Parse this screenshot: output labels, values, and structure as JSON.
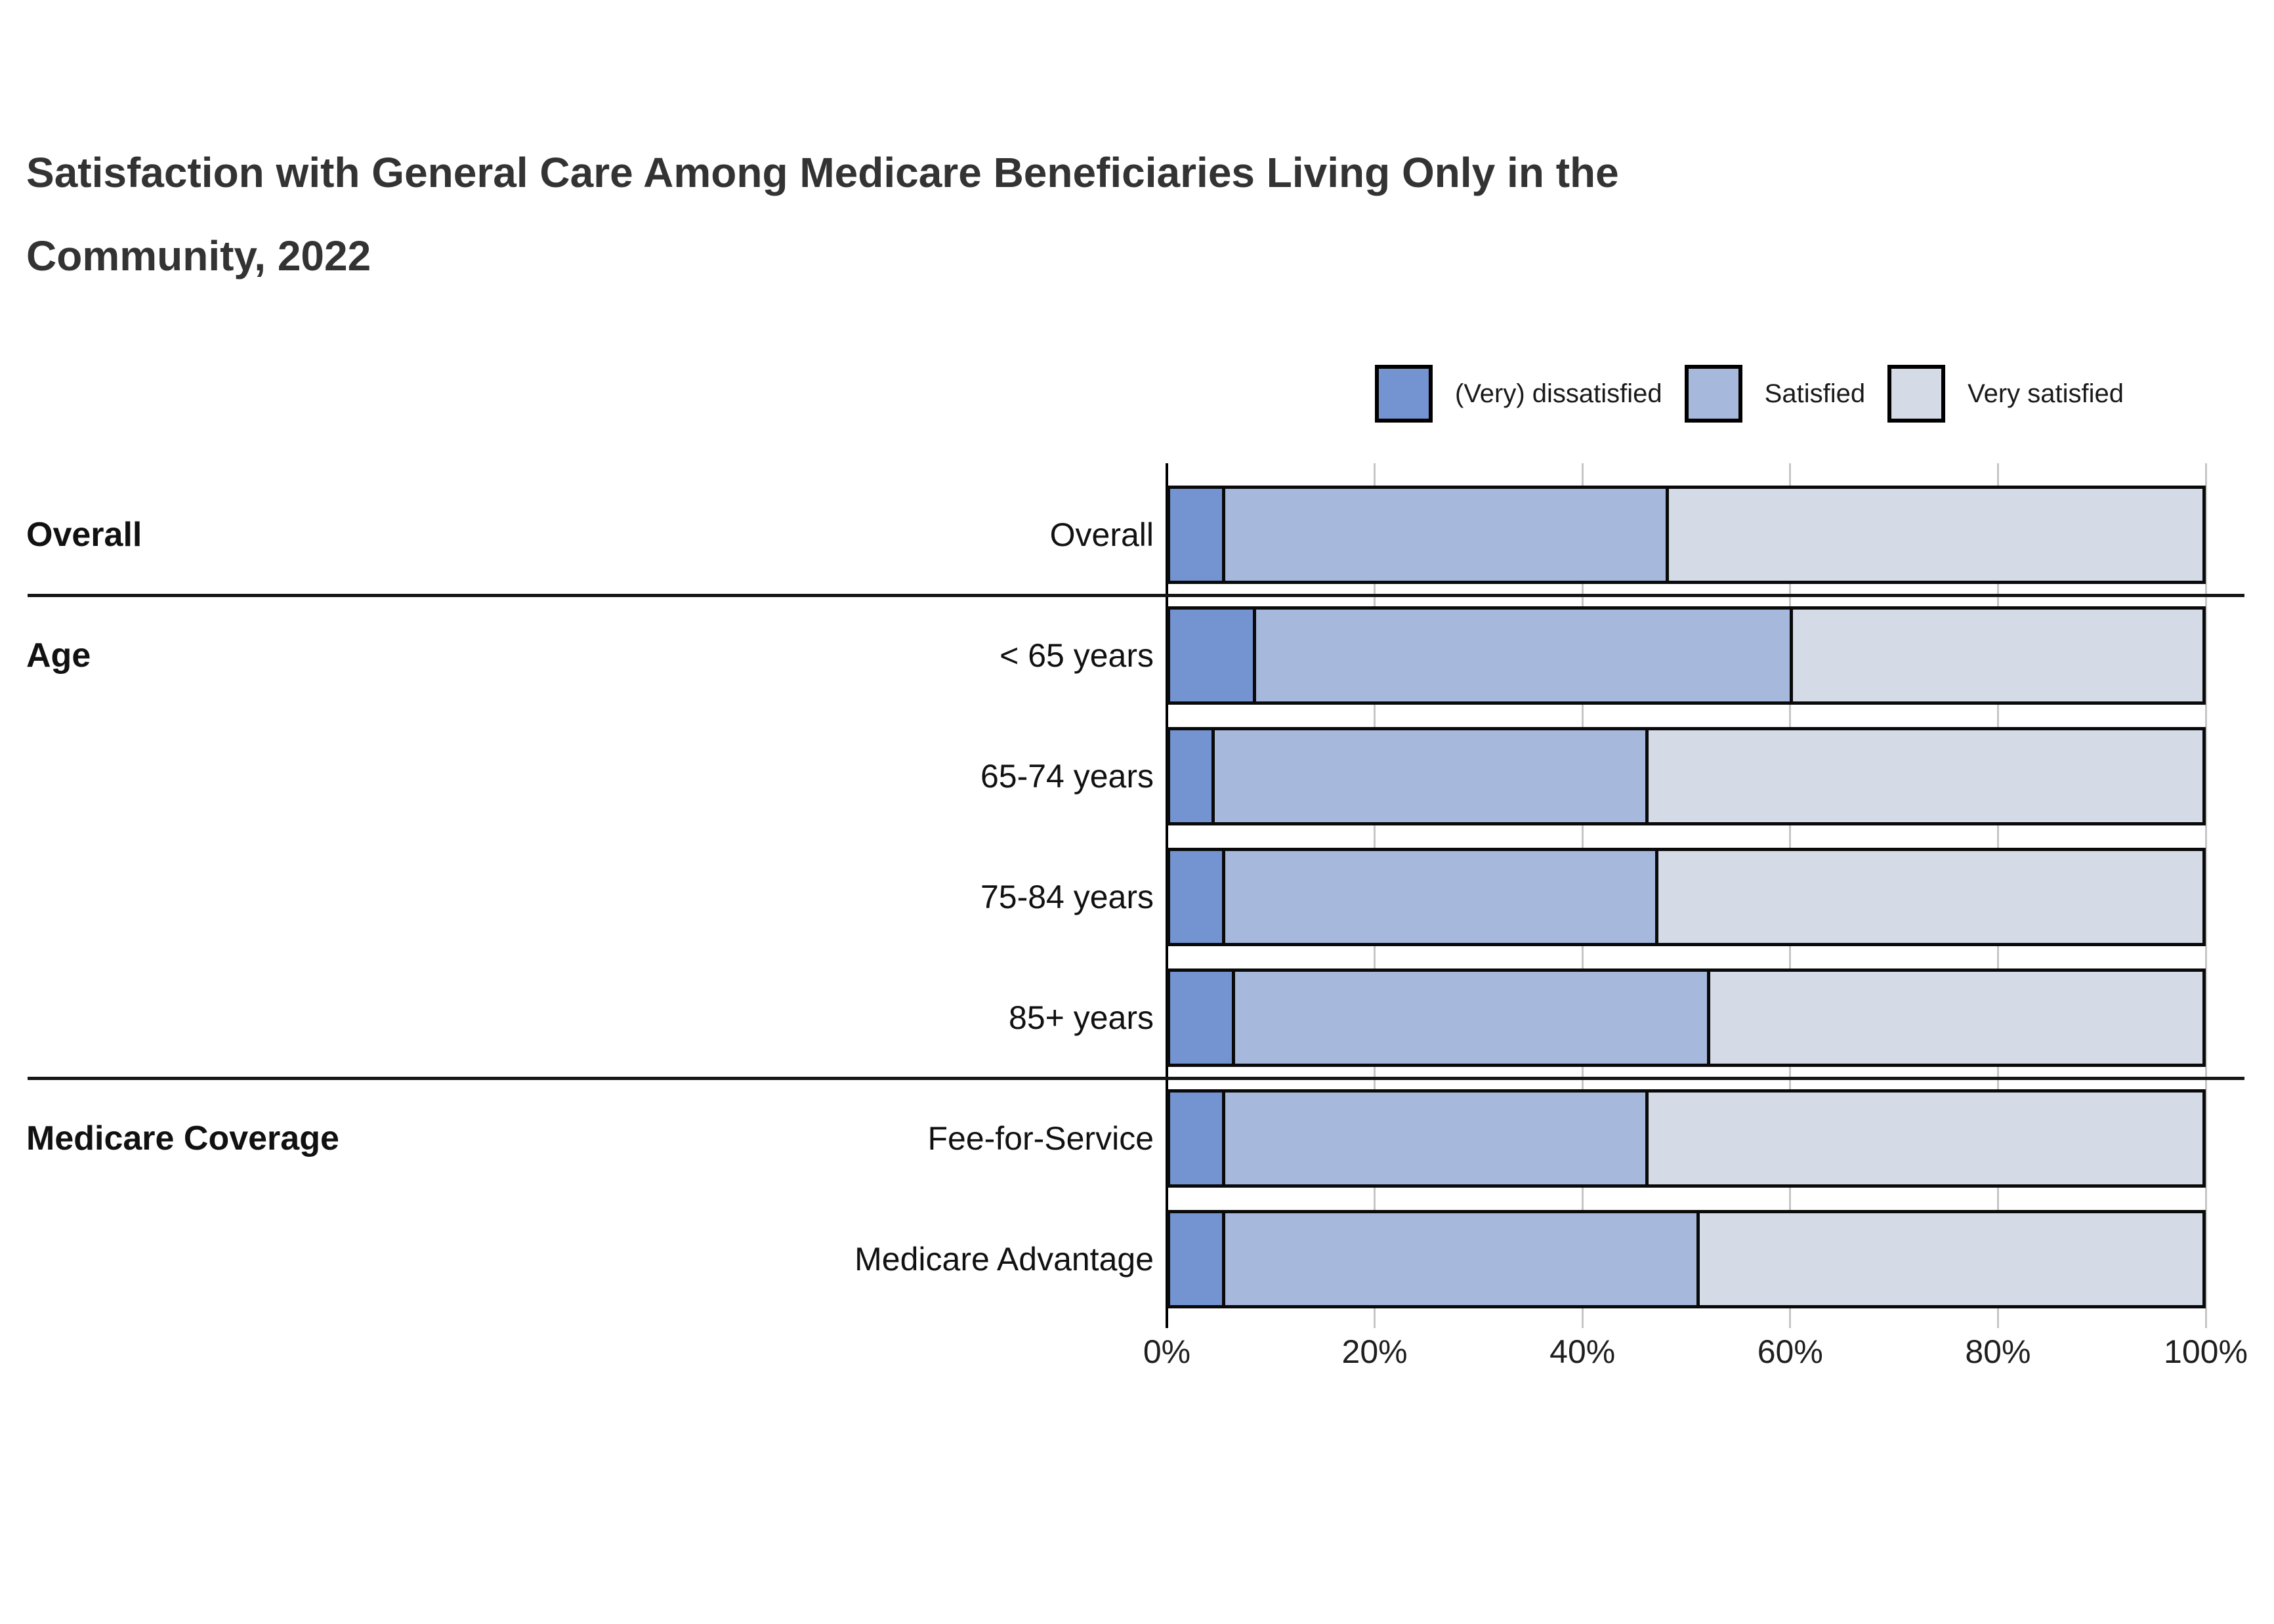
{
  "title": {
    "lines": [
      "Satisfaction with General Care Among Medicare Beneficiaries Living Only in the",
      "Community, 2022"
    ]
  },
  "legend": {
    "items": [
      {
        "label": "(Very) dissatisfied",
        "color": "#7493d1"
      },
      {
        "label": "Satisfied",
        "color": "#a6b8dc"
      },
      {
        "label": "Very satisfied",
        "color": "#d4dbe6"
      }
    ]
  },
  "x_axis": {
    "ticks": [
      "0%",
      "20%",
      "40%",
      "60%",
      "80%",
      "100%"
    ],
    "min": 0,
    "max": 100
  },
  "groups": [
    {
      "label": "Overall",
      "first_row": 0
    },
    {
      "label": "Age",
      "first_row": 1
    },
    {
      "label": "Medicare Coverage",
      "first_row": 5
    }
  ],
  "rows": [
    {
      "label": "Overall",
      "values": [
        5,
        43,
        52
      ]
    },
    {
      "label": "< 65 years",
      "values": [
        8,
        52,
        40
      ]
    },
    {
      "label": "65-74 years",
      "values": [
        4,
        42,
        54
      ]
    },
    {
      "label": "75-84 years",
      "values": [
        5,
        42,
        53
      ]
    },
    {
      "label": "85+ years",
      "values": [
        6,
        46,
        48
      ]
    },
    {
      "label": "Fee-for-Service",
      "values": [
        5,
        41,
        54
      ]
    },
    {
      "label": "Medicare Advantage",
      "values": [
        5,
        46,
        49
      ]
    }
  ],
  "chart_data": {
    "type": "bar",
    "orientation": "horizontal",
    "stacked": true,
    "title": "Satisfaction with General Care Among Medicare Beneficiaries Living Only in the Community, 2022",
    "categories": [
      "Overall",
      "< 65 years",
      "65-74 years",
      "75-84 years",
      "85+ years",
      "Fee-for-Service",
      "Medicare Advantage"
    ],
    "category_groups": {
      "Overall": [
        "Overall"
      ],
      "Age": [
        "< 65 years",
        "65-74 years",
        "75-84 years",
        "85+ years"
      ],
      "Medicare Coverage": [
        "Fee-for-Service",
        "Medicare Advantage"
      ]
    },
    "series": [
      {
        "name": "(Very) dissatisfied",
        "values": [
          5,
          8,
          4,
          5,
          6,
          5,
          5
        ],
        "color": "#7493d1"
      },
      {
        "name": "Satisfied",
        "values": [
          43,
          52,
          42,
          42,
          46,
          41,
          46
        ],
        "color": "#a6b8dc"
      },
      {
        "name": "Very satisfied",
        "values": [
          52,
          40,
          54,
          53,
          48,
          54,
          49
        ],
        "color": "#d4dbe6"
      }
    ],
    "xlim": [
      0,
      100
    ],
    "x_ticks": [
      "0%",
      "20%",
      "40%",
      "60%",
      "80%",
      "100%"
    ],
    "legend_position": "top-right",
    "grid": "vertical-lines"
  }
}
